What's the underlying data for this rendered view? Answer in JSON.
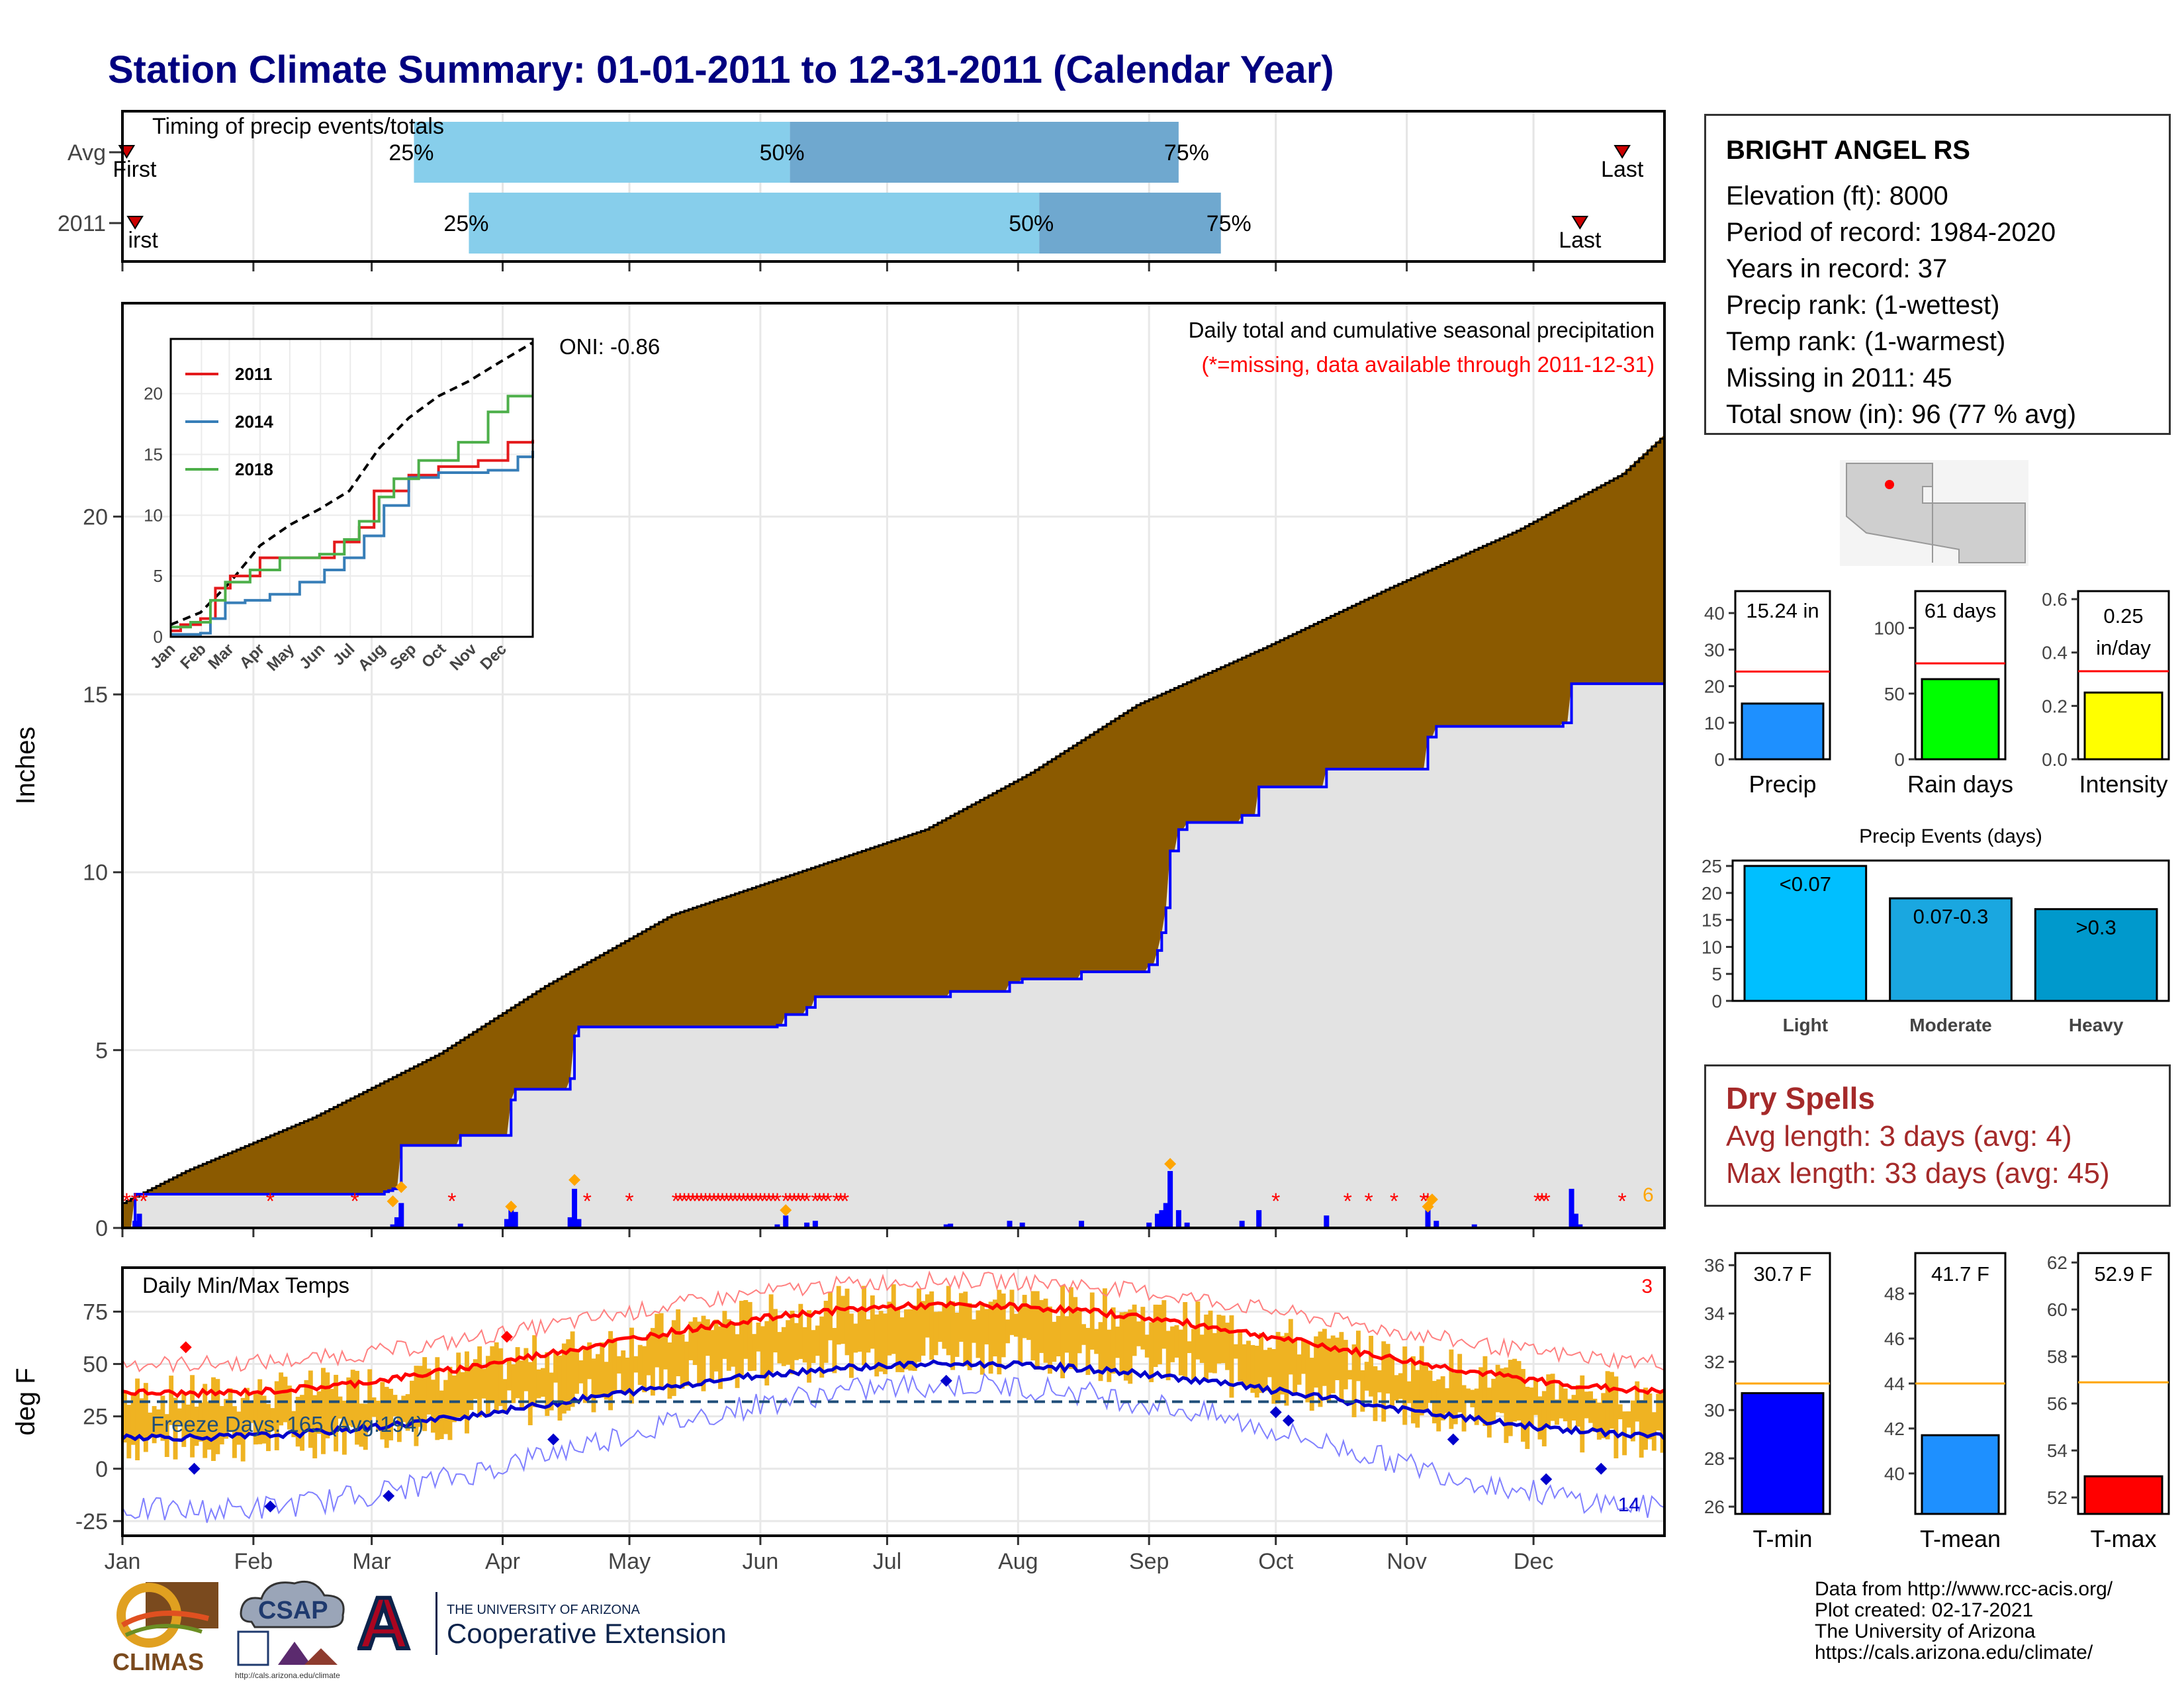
{
  "title": "Station Climate Summary: 01-01-2011 to 12-31-2011 (Calendar Year)",
  "timing": {
    "title": "Timing of precip events/totals",
    "rows": [
      {
        "label": "Avg",
        "first": 1,
        "p25": 69,
        "p50": 158,
        "p75": 250,
        "last": 355,
        "first_label": "First",
        "last_label": "Last"
      },
      {
        "label": "2011",
        "first": 3,
        "p25": 82,
        "p50": 217,
        "p75": 260,
        "last": 345,
        "first_label": "irst",
        "last_label": "Last"
      }
    ],
    "pct_labels": [
      "25%",
      "50%",
      "75%"
    ],
    "colors": {
      "light": "#87CEEB",
      "dark": "#6FA8CF",
      "marker": "#CC0000"
    }
  },
  "months": [
    "Jan",
    "Feb",
    "Mar",
    "Apr",
    "May",
    "Jun",
    "Jul",
    "Aug",
    "Sep",
    "Oct",
    "Nov",
    "Dec"
  ],
  "precip_panel": {
    "ylabel": "Inches",
    "yticks": [
      0,
      5,
      10,
      15,
      20
    ],
    "note1": "Daily total and cumulative seasonal precipitation",
    "note2": "(*=missing, data available through 2011-12-31)",
    "oni": "ONI: -0.86",
    "corner_count": "6",
    "colors": {
      "avg_fill": "#8B5A00",
      "year_line": "#0000FF",
      "grey_fill": "#E3E3E3",
      "missing": "#FF0000",
      "snow": "#FFA500"
    }
  },
  "inset": {
    "yticks": [
      0,
      5,
      10,
      15,
      20
    ],
    "xticks": [
      "Jan",
      "Feb",
      "Mar",
      "Apr",
      "May",
      "Jun",
      "Jul",
      "Aug",
      "Sep",
      "Oct",
      "Nov",
      "Dec"
    ],
    "legend": [
      {
        "name": "2011",
        "color": "#E41A1C"
      },
      {
        "name": "2014",
        "color": "#377EB8"
      },
      {
        "name": "2018",
        "color": "#4DAF4A"
      }
    ]
  },
  "temp_panel": {
    "title": "Daily Min/Max Temps",
    "ylabel": "deg F",
    "yticks": [
      -25,
      0,
      25,
      50,
      75
    ],
    "freeze_label": "Freeze Days: 165 (Avg:194)",
    "freeze_level": 32,
    "count_hot": "3",
    "count_cold": "14",
    "colors": {
      "bars": "#EFB322",
      "max_mean": "#FF0000",
      "min_mean": "#0000CC"
    }
  },
  "station": {
    "name": "BRIGHT ANGEL RS",
    "lines": [
      "Elevation (ft): 8000",
      "Period of record: 1984-2020",
      "Years in record: 37",
      "Precip rank:  (1-wettest)",
      "Temp rank:  (1-warmest)",
      "Missing in 2011: 45",
      "Total snow (in): 96 (77 % avg)"
    ]
  },
  "summary_bars": [
    {
      "label": "Precip",
      "value_text": "15.24 in",
      "value": 15.24,
      "avg": 24,
      "ymax": 46,
      "ticks": [
        0,
        10,
        20,
        30,
        40
      ],
      "color": "#1E90FF"
    },
    {
      "label": "Rain days",
      "value_text": "61 days",
      "value": 61,
      "avg": 73,
      "ymax": 128,
      "ticks": [
        0,
        50,
        100
      ],
      "color": "#00FF00"
    },
    {
      "label": "Intensity",
      "value_text": "0.25 in/day",
      "value": 0.25,
      "avg": 0.33,
      "ymax": 0.63,
      "ticks": [
        "0.0",
        "0.2",
        "0.4",
        "0.6"
      ],
      "color": "#FFFF00"
    }
  ],
  "events": {
    "title": "Precip Events (days)",
    "ticks": [
      0,
      5,
      10,
      15,
      20,
      25
    ],
    "bars": [
      {
        "label": "Light",
        "value_label": "<0.07",
        "value": 25,
        "color": "#00BFFF"
      },
      {
        "label": "Moderate",
        "value_label": "0.07-0.3",
        "value": 19,
        "color": "#1AA7E0"
      },
      {
        "label": "Heavy",
        "value_label": ">0.3",
        "value": 17,
        "color": "#0099CC"
      }
    ]
  },
  "dry_spells": {
    "title": "Dry Spells",
    "avg_length": "Avg length: 3 days (avg: 4)",
    "max_length": "Max length: 33 days (avg: 45)"
  },
  "temp_bars": [
    {
      "label": "T-min",
      "value_text": "30.7 F",
      "value": 30.7,
      "avg": 31.1,
      "ymin": 25.7,
      "ymax": 36.5,
      "ticks": [
        26,
        28,
        30,
        32,
        34,
        36
      ],
      "color": "#0000FF"
    },
    {
      "label": "T-mean",
      "value_text": "41.7 F",
      "value": 41.7,
      "avg": 44,
      "ymin": 38.2,
      "ymax": 49.8,
      "ticks": [
        40,
        42,
        44,
        46,
        48
      ],
      "color": "#1E90FF"
    },
    {
      "label": "T-max",
      "value_text": "52.9 F",
      "value": 52.9,
      "avg": 56.9,
      "ymin": 51.3,
      "ymax": 62.4,
      "ticks": [
        52,
        54,
        56,
        58,
        60,
        62
      ],
      "color": "#FF0000"
    }
  ],
  "credits": [
    "Data from http://www.rcc-acis.org/",
    "Plot created: 02-17-2021",
    "The University of Arizona",
    "https://cals.arizona.edu/climate/"
  ],
  "logos": {
    "climas": "CLIMAS",
    "csap": "CSAP",
    "csap_url": "http://cals.arizona.edu/climate",
    "ua_small": "THE UNIVERSITY OF ARIZONA",
    "coop": "Cooperative Extension",
    "ua_letter": "A"
  }
}
